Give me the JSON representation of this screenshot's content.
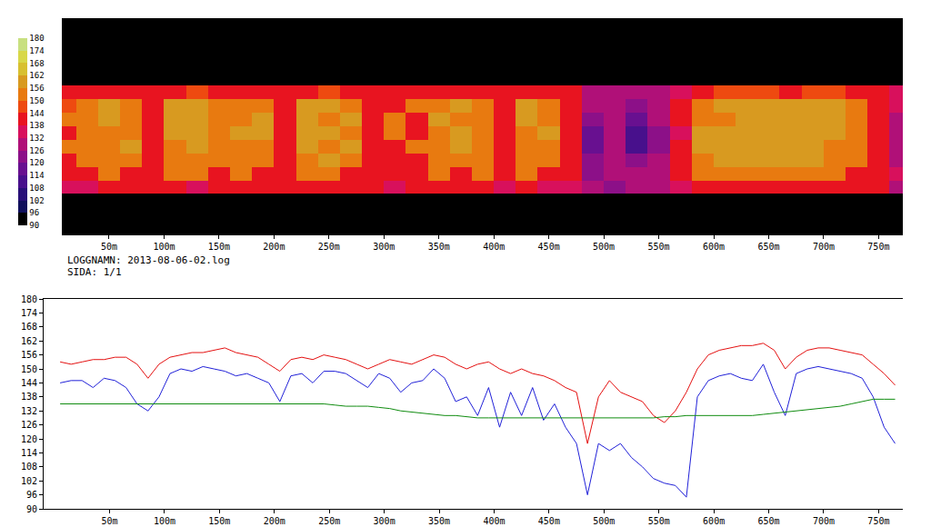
{
  "chart_data": [
    {
      "type": "heatmap",
      "x": [
        10,
        30,
        50,
        70,
        90,
        110,
        130,
        150,
        170,
        190,
        210,
        230,
        250,
        270,
        290,
        310,
        330,
        350,
        370,
        390,
        410,
        430,
        450,
        470,
        490,
        510,
        530,
        550,
        570,
        590,
        610,
        630,
        650,
        670,
        690,
        710,
        730,
        750,
        770
      ],
      "z": [
        [
          null,
          null,
          null,
          null,
          null,
          null,
          null,
          null,
          null,
          null,
          null,
          null,
          null,
          null,
          null,
          null,
          null,
          null,
          null,
          null,
          null,
          null,
          null,
          null,
          null,
          null,
          null,
          null,
          null,
          null,
          null,
          null,
          null,
          null,
          null,
          null,
          null,
          null,
          null
        ],
        [
          null,
          null,
          null,
          null,
          null,
          null,
          null,
          null,
          null,
          null,
          null,
          null,
          null,
          null,
          null,
          null,
          null,
          null,
          null,
          null,
          null,
          null,
          null,
          null,
          null,
          null,
          null,
          null,
          null,
          null,
          null,
          null,
          null,
          null,
          null,
          null,
          null,
          null,
          null
        ],
        [
          null,
          null,
          null,
          null,
          null,
          null,
          null,
          null,
          null,
          null,
          null,
          null,
          null,
          null,
          null,
          null,
          null,
          null,
          null,
          null,
          null,
          null,
          null,
          null,
          null,
          null,
          null,
          null,
          null,
          null,
          null,
          null,
          null,
          null,
          null,
          null,
          null,
          null,
          null
        ],
        [
          null,
          null,
          null,
          null,
          null,
          null,
          null,
          null,
          null,
          null,
          null,
          null,
          null,
          null,
          null,
          null,
          null,
          null,
          null,
          null,
          null,
          null,
          null,
          null,
          null,
          null,
          null,
          null,
          null,
          null,
          null,
          null,
          null,
          null,
          null,
          null,
          null,
          null,
          null
        ],
        [
          null,
          null,
          null,
          null,
          null,
          null,
          null,
          null,
          null,
          null,
          null,
          null,
          null,
          null,
          null,
          null,
          null,
          null,
          null,
          null,
          null,
          null,
          null,
          null,
          null,
          null,
          null,
          null,
          null,
          null,
          null,
          null,
          null,
          null,
          null,
          null,
          null,
          null,
          null
        ],
        [
          141,
          141,
          141,
          141,
          141,
          141,
          146,
          141,
          141,
          141,
          141,
          141,
          146,
          141,
          141,
          141,
          141,
          141,
          141,
          141,
          141,
          141,
          141,
          138,
          128,
          128,
          126,
          130,
          135,
          141,
          146,
          146,
          146,
          141,
          146,
          146,
          141,
          141,
          135
        ],
        [
          146,
          152,
          158,
          152,
          141,
          158,
          158,
          152,
          152,
          152,
          141,
          158,
          158,
          152,
          141,
          141,
          152,
          152,
          158,
          152,
          141,
          158,
          152,
          141,
          126,
          130,
          124,
          130,
          138,
          152,
          158,
          158,
          158,
          158,
          158,
          158,
          152,
          141,
          132
        ],
        [
          152,
          152,
          158,
          152,
          141,
          158,
          158,
          152,
          152,
          158,
          141,
          158,
          152,
          158,
          141,
          152,
          141,
          158,
          152,
          152,
          141,
          158,
          152,
          141,
          122,
          130,
          118,
          128,
          138,
          152,
          152,
          158,
          158,
          158,
          158,
          158,
          152,
          141,
          130
        ],
        [
          141,
          152,
          152,
          152,
          141,
          158,
          158,
          152,
          158,
          158,
          141,
          158,
          158,
          152,
          141,
          152,
          141,
          152,
          158,
          152,
          141,
          152,
          158,
          141,
          118,
          126,
          108,
          120,
          135,
          158,
          158,
          158,
          158,
          158,
          158,
          158,
          152,
          141,
          128
        ],
        [
          152,
          152,
          152,
          158,
          141,
          152,
          158,
          152,
          152,
          152,
          141,
          158,
          152,
          158,
          141,
          141,
          152,
          152,
          158,
          152,
          141,
          152,
          152,
          141,
          118,
          128,
          112,
          124,
          138,
          158,
          158,
          158,
          158,
          158,
          158,
          152,
          152,
          141,
          128
        ],
        [
          141,
          152,
          152,
          152,
          141,
          152,
          152,
          152,
          152,
          152,
          141,
          152,
          158,
          152,
          141,
          141,
          141,
          152,
          152,
          152,
          141,
          152,
          152,
          141,
          120,
          130,
          120,
          128,
          138,
          152,
          158,
          158,
          158,
          158,
          158,
          152,
          152,
          141,
          130
        ],
        [
          141,
          141,
          152,
          141,
          141,
          152,
          152,
          141,
          152,
          141,
          141,
          152,
          152,
          141,
          141,
          141,
          141,
          152,
          141,
          152,
          141,
          152,
          141,
          141,
          124,
          128,
          126,
          130,
          138,
          152,
          152,
          152,
          152,
          152,
          152,
          152,
          141,
          141,
          132
        ],
        [
          135,
          135,
          141,
          141,
          141,
          141,
          135,
          141,
          141,
          141,
          141,
          141,
          141,
          141,
          141,
          135,
          141,
          141,
          141,
          141,
          135,
          141,
          135,
          135,
          126,
          124,
          128,
          126,
          132,
          141,
          141,
          141,
          141,
          141,
          141,
          141,
          141,
          138,
          130
        ],
        [
          null,
          null,
          null,
          null,
          null,
          null,
          null,
          null,
          null,
          null,
          null,
          null,
          null,
          null,
          null,
          null,
          null,
          null,
          null,
          null,
          null,
          null,
          null,
          null,
          null,
          null,
          null,
          null,
          null,
          null,
          null,
          null,
          null,
          null,
          null,
          null,
          null,
          null,
          null
        ],
        [
          null,
          null,
          null,
          null,
          null,
          null,
          null,
          null,
          null,
          null,
          null,
          null,
          null,
          null,
          null,
          null,
          null,
          null,
          null,
          null,
          null,
          null,
          null,
          null,
          null,
          null,
          null,
          null,
          null,
          null,
          null,
          null,
          null,
          null,
          null,
          null,
          null,
          null,
          null
        ],
        [
          null,
          null,
          null,
          null,
          null,
          null,
          null,
          null,
          null,
          null,
          null,
          null,
          null,
          null,
          null,
          null,
          null,
          null,
          null,
          null,
          null,
          null,
          null,
          null,
          null,
          null,
          null,
          null,
          null,
          null,
          null,
          null,
          null,
          null,
          null,
          null,
          null,
          null,
          null
        ]
      ],
      "xlim": [
        7,
        772
      ],
      "xticks": [
        {
          "value": 50,
          "label": "50m"
        },
        {
          "value": 100,
          "label": "100m"
        },
        {
          "value": 150,
          "label": "150m"
        },
        {
          "value": 200,
          "label": "200m"
        },
        {
          "value": 250,
          "label": "250m"
        },
        {
          "value": 300,
          "label": "300m"
        },
        {
          "value": 350,
          "label": "350m"
        },
        {
          "value": 400,
          "label": "400m"
        },
        {
          "value": 450,
          "label": "450m"
        },
        {
          "value": 500,
          "label": "500m"
        },
        {
          "value": 550,
          "label": "550m"
        },
        {
          "value": 600,
          "label": "600m"
        },
        {
          "value": 650,
          "label": "650m"
        },
        {
          "value": 700,
          "label": "700m"
        },
        {
          "value": 750,
          "label": "750m"
        }
      ],
      "tick_labels": "x",
      "zlim": [
        90,
        180
      ],
      "zticks": [
        90,
        96,
        102,
        108,
        114,
        120,
        126,
        132,
        138,
        144,
        150,
        156,
        162,
        168,
        174,
        180
      ],
      "annotations": [
        "LOGGNAMN: 2013-08-06-02.log",
        "SIDA: 1/1"
      ]
    },
    {
      "type": "line",
      "x": [
        5,
        15,
        25,
        35,
        45,
        55,
        65,
        75,
        85,
        95,
        105,
        115,
        125,
        135,
        145,
        155,
        165,
        175,
        185,
        195,
        205,
        215,
        225,
        235,
        245,
        255,
        265,
        275,
        285,
        295,
        305,
        315,
        325,
        335,
        345,
        355,
        365,
        375,
        385,
        395,
        405,
        415,
        425,
        435,
        445,
        455,
        465,
        475,
        485,
        495,
        505,
        515,
        525,
        535,
        545,
        555,
        565,
        575,
        585,
        595,
        605,
        615,
        625,
        635,
        645,
        655,
        665,
        675,
        685,
        695,
        705,
        715,
        725,
        735,
        745,
        755,
        765
      ],
      "series": [
        {
          "color": "#e41010",
          "values": [
            153,
            152,
            153,
            154,
            154,
            155,
            155,
            152,
            146,
            152,
            155,
            156,
            157,
            157,
            158,
            159,
            157,
            156,
            155,
            152,
            149,
            154,
            155,
            154,
            156,
            155,
            154,
            152,
            150,
            152,
            154,
            153,
            152,
            154,
            156,
            155,
            152,
            150,
            152,
            153,
            150,
            148,
            150,
            148,
            147,
            145,
            142,
            140,
            118,
            138,
            145,
            140,
            138,
            136,
            130,
            127,
            132,
            140,
            150,
            156,
            158,
            159,
            160,
            160,
            161,
            158,
            150,
            155,
            158,
            159,
            159,
            158,
            157,
            156,
            152,
            148,
            143
          ]
        },
        {
          "color": "#2020d8",
          "values": [
            144,
            145,
            145,
            142,
            146,
            145,
            142,
            135,
            132,
            138,
            148,
            150,
            149,
            151,
            150,
            149,
            147,
            148,
            146,
            144,
            136,
            147,
            148,
            144,
            149,
            149,
            148,
            145,
            142,
            148,
            146,
            140,
            144,
            145,
            150,
            146,
            136,
            138,
            130,
            142,
            125,
            140,
            130,
            142,
            128,
            135,
            125,
            118,
            96,
            118,
            115,
            118,
            112,
            108,
            103,
            101,
            100,
            95,
            138,
            145,
            147,
            148,
            146,
            145,
            152,
            140,
            130,
            148,
            150,
            151,
            150,
            149,
            148,
            146,
            138,
            125,
            118
          ]
        },
        {
          "color": "#108c10",
          "values": [
            135,
            135,
            135,
            135,
            135,
            135,
            135,
            135,
            135,
            135,
            135,
            135,
            135,
            135,
            135,
            135,
            135,
            135,
            135,
            135,
            135,
            135,
            135,
            135,
            135,
            134.5,
            134,
            134,
            134,
            133.5,
            133,
            132,
            131.5,
            131,
            130.5,
            130,
            130,
            129.5,
            129,
            129,
            129,
            129,
            129,
            129,
            129,
            129,
            129,
            129,
            129,
            129,
            129,
            129,
            129,
            129,
            129,
            129.5,
            129.5,
            130,
            130,
            130,
            130,
            130,
            130,
            130,
            130.5,
            131,
            131.5,
            132,
            132.5,
            133,
            133.5,
            134,
            135,
            136,
            137,
            137,
            137
          ]
        }
      ],
      "xlim": [
        -10,
        772
      ],
      "xticks": [
        {
          "value": 50,
          "label": "50m"
        },
        {
          "value": 100,
          "label": "100m"
        },
        {
          "value": 150,
          "label": "150m"
        },
        {
          "value": 200,
          "label": "200m"
        },
        {
          "value": 250,
          "label": "250m"
        },
        {
          "value": 300,
          "label": "300m"
        },
        {
          "value": 350,
          "label": "350m"
        },
        {
          "value": 400,
          "label": "400m"
        },
        {
          "value": 450,
          "label": "450m"
        },
        {
          "value": 500,
          "label": "500m"
        },
        {
          "value": 550,
          "label": "550m"
        },
        {
          "value": 600,
          "label": "600m"
        },
        {
          "value": 650,
          "label": "650m"
        },
        {
          "value": 700,
          "label": "700m"
        },
        {
          "value": 750,
          "label": "750m"
        }
      ],
      "ylim": [
        90,
        180
      ],
      "yticks": [
        90,
        96,
        102,
        108,
        114,
        120,
        126,
        132,
        138,
        144,
        150,
        156,
        162,
        168,
        174,
        180
      ]
    }
  ]
}
